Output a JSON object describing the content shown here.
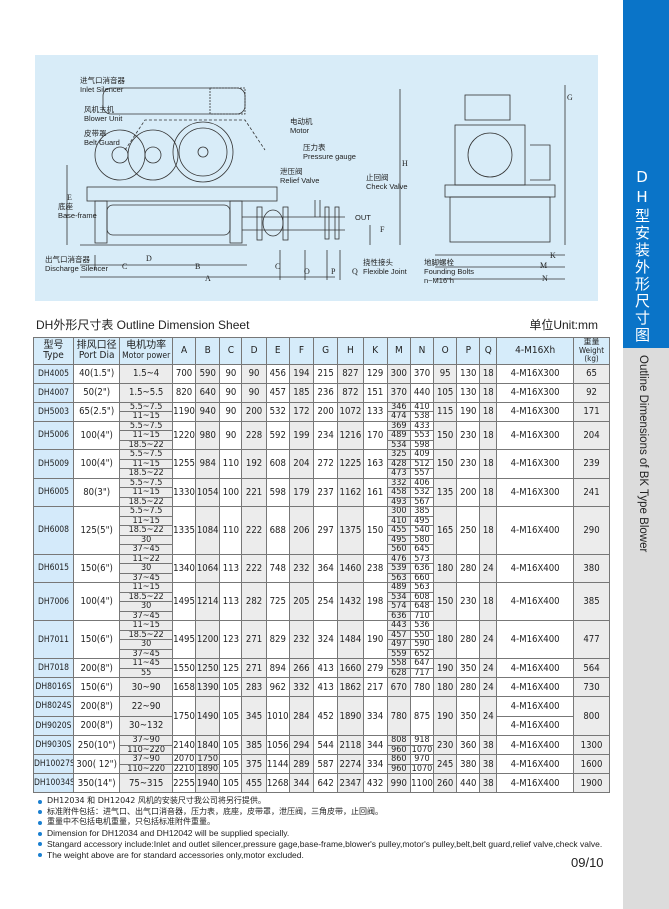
{
  "sidebar": {
    "title_cn": "DH型安装外形尺寸图",
    "title_en": "Outline Dimensions of BK Type Blower"
  },
  "diagram": {
    "labels": [
      {
        "cn": "进气口消音器",
        "en": "Inlet Silencer"
      },
      {
        "cn": "风机主机",
        "en": "Blower Unit"
      },
      {
        "cn": "皮带罩",
        "en": "Belt Guard"
      },
      {
        "cn": "电动机",
        "en": "Motor"
      },
      {
        "cn": "压力表",
        "en": "Pressure gauge"
      },
      {
        "cn": "泄压阀",
        "en": "Relief Valve"
      },
      {
        "cn": "止回阀",
        "en": "Check Valve"
      },
      {
        "cn": "底座",
        "en": "Base-frame"
      },
      {
        "cn": "出气口消音器",
        "en": "Discharge Silencer"
      },
      {
        "cn": "挠性接头",
        "en": "Flexible Joint"
      },
      {
        "cn": "地脚螺栓",
        "en": "Founding Bolts",
        "extra": "n~M16\"h"
      }
    ],
    "out_label": "OUT",
    "dims": {
      "A": "A",
      "B": "B",
      "C": "C",
      "D": "D",
      "E": "E",
      "F": "F",
      "G": "G",
      "H": "H",
      "K": "K",
      "M": "M",
      "N": "N",
      "O": "O",
      "P": "P",
      "Q": "Q"
    }
  },
  "sheet": {
    "title": "DH外形尺寸表 Outline Dimension Sheet",
    "unit": "单位Unit:mm"
  },
  "table": {
    "headers": [
      {
        "cn": "型号",
        "en": "Type"
      },
      {
        "cn": "排风口径",
        "en": "Port Dia"
      },
      {
        "cn": "电机功率",
        "en": "Motor power"
      },
      {
        "en": "A"
      },
      {
        "en": "B"
      },
      {
        "en": "C"
      },
      {
        "en": "D"
      },
      {
        "en": "E"
      },
      {
        "en": "F"
      },
      {
        "en": "G"
      },
      {
        "en": "H"
      },
      {
        "en": "K"
      },
      {
        "en": "M"
      },
      {
        "en": "N"
      },
      {
        "en": "O"
      },
      {
        "en": "P"
      },
      {
        "en": "Q"
      },
      {
        "en": "4-M16Xh"
      },
      {
        "cn": "重量",
        "en": "Weight",
        "unit": "(kg)"
      }
    ],
    "rows": [
      {
        "type": "DH4005",
        "port": "40(1.5\")",
        "motor": "1.5~4",
        "A": "700",
        "B": "590",
        "C": "90",
        "D": "90",
        "E": "456",
        "F": "194",
        "G": "215",
        "H": "827",
        "K": "129",
        "M": "300",
        "N": "370",
        "O": "95",
        "P": "130",
        "Q": "18",
        "bolt": "4-M16X300",
        "weight": "65"
      },
      {
        "type": "DH4007",
        "port": "50(2\")",
        "motor": "1.5~5.5",
        "A": "820",
        "B": "640",
        "C": "90",
        "D": "90",
        "E": "457",
        "F": "185",
        "G": "236",
        "H": "872",
        "K": "151",
        "M": "370",
        "N": "440",
        "O": "105",
        "P": "130",
        "Q": "18",
        "bolt": "4-M16X300",
        "weight": "92"
      },
      {
        "type": "DH5003",
        "port": "65(2.5\")",
        "motor": [
          "5.5~7.5",
          "11~15"
        ],
        "A": "1190",
        "B": "940",
        "C": "90",
        "D": "200",
        "E": "532",
        "F": "172",
        "G": "200",
        "H": "1072",
        "K": "133",
        "M": [
          "346",
          "474"
        ],
        "N": [
          "410",
          "538"
        ],
        "O": "115",
        "P": "190",
        "Q": "18",
        "bolt": "4-M16X300",
        "weight": "171"
      },
      {
        "type": "DH5006",
        "port": "100(4\")",
        "motor": [
          "5.5~7.5",
          "11~15",
          "18.5~22"
        ],
        "A": "1220",
        "B": "980",
        "C": "90",
        "D": "228",
        "E": "592",
        "F": "199",
        "G": "234",
        "H": "1216",
        "K": "170",
        "M": [
          "369",
          "489",
          "534"
        ],
        "N": [
          "433",
          "553",
          "598"
        ],
        "O": "150",
        "P": "230",
        "Q": "18",
        "bolt": "4-M16X300",
        "weight": "204"
      },
      {
        "type": "DH5009",
        "port": "100(4\")",
        "motor": [
          "5.5~7.5",
          "11~15",
          "18.5~22"
        ],
        "A": "1255",
        "B": "984",
        "C": "110",
        "D": "192",
        "E": "608",
        "F": "204",
        "G": "272",
        "H": "1225",
        "K": "163",
        "M": [
          "325",
          "428",
          "473"
        ],
        "N": [
          "409",
          "512",
          "557"
        ],
        "O": "150",
        "P": "230",
        "Q": "18",
        "bolt": "4-M16X300",
        "weight": "239"
      },
      {
        "type": "DH6005",
        "port": "80(3\")",
        "motor": [
          "5.5~7.5",
          "11~15",
          "18.5~22"
        ],
        "A": "1330",
        "B": "1054",
        "C": "100",
        "D": "221",
        "E": "598",
        "F": "179",
        "G": "237",
        "H": "1162",
        "K": "161",
        "M": [
          "332",
          "458",
          "493"
        ],
        "N": [
          "406",
          "532",
          "567"
        ],
        "O": "135",
        "P": "200",
        "Q": "18",
        "bolt": "4-M16X300",
        "weight": "241"
      },
      {
        "type": "DH6008",
        "port": "125(5\")",
        "motor": [
          "5.5~7.5",
          "11~15",
          "18.5~22",
          "30",
          "37~45"
        ],
        "A": "1335",
        "B": "1084",
        "C": "110",
        "D": "222",
        "E": "688",
        "F": "206",
        "G": "297",
        "H": "1375",
        "K": "150",
        "M": [
          "300",
          "410",
          "455",
          "495",
          "560"
        ],
        "N": [
          "385",
          "495",
          "540",
          "580",
          "645"
        ],
        "O": "165",
        "P": "250",
        "Q": "18",
        "bolt": "4-M16X400",
        "weight": "290"
      },
      {
        "type": "DH6015",
        "port": "150(6\")",
        "motor": [
          "11~22",
          "30",
          "37~45"
        ],
        "A": "1340",
        "B": "1064",
        "C": "113",
        "D": "222",
        "E": "748",
        "F": "232",
        "G": "364",
        "H": "1460",
        "K": "238",
        "M": [
          "476",
          "539",
          "563"
        ],
        "N": [
          "573",
          "636",
          "660"
        ],
        "O": "180",
        "P": "280",
        "Q": "24",
        "bolt": "4-M16X400",
        "weight": "380"
      },
      {
        "type": "DH7006",
        "port": "100(4\")",
        "motor": [
          "11~15",
          "18.5~22",
          "30",
          "37~45"
        ],
        "A": "1495",
        "B": "1214",
        "C": "113",
        "D": "282",
        "E": "725",
        "F": "205",
        "G": "254",
        "H": "1432",
        "K": "198",
        "M": [
          "489",
          "534",
          "574",
          "636"
        ],
        "N": [
          "563",
          "608",
          "648",
          "710"
        ],
        "O": "150",
        "P": "230",
        "Q": "18",
        "bolt": "4-M16X400",
        "weight": "385"
      },
      {
        "type": "DH7011",
        "port": "150(6\")",
        "motor": [
          "11~15",
          "18.5~22",
          "30",
          "37~45"
        ],
        "A": "1495",
        "B": "1200",
        "C": "123",
        "D": "271",
        "E": "829",
        "F": "232",
        "G": "324",
        "H": "1484",
        "K": "190",
        "M": [
          "443",
          "457",
          "497",
          "559"
        ],
        "N": [
          "536",
          "550",
          "590",
          "652"
        ],
        "O": "180",
        "P": "280",
        "Q": "24",
        "bolt": "4-M16X400",
        "weight": "477"
      },
      {
        "type": "DH7018",
        "port": "200(8\")",
        "motor": [
          "11~45",
          "55"
        ],
        "A": "1550",
        "B": "1250",
        "C": "125",
        "D": "271",
        "E": "894",
        "F": "266",
        "G": "413",
        "H": "1660",
        "K": "279",
        "M": [
          "558",
          "628"
        ],
        "N": [
          "647",
          "717"
        ],
        "O": "190",
        "P": "350",
        "Q": "24",
        "bolt": "4-M16X400",
        "weight": "564"
      },
      {
        "type": "DH8016S",
        "port": "150(6\")",
        "motor": "30~90",
        "A": "1658",
        "B": "1390",
        "C": "105",
        "D": "283",
        "E": "962",
        "F": "332",
        "G": "413",
        "H": "1862",
        "K": "217",
        "M": "670",
        "N": "780",
        "O": "180",
        "P": "280",
        "Q": "24",
        "bolt": "4-M16X400",
        "weight": "730"
      },
      {
        "type": [
          "DH8024S",
          "DH9020S"
        ],
        "port": [
          "200(8\")",
          "200(8\")"
        ],
        "motor": [
          "22~90",
          "30~132"
        ],
        "A": "1750",
        "B": "1490",
        "C": "105",
        "D": "345",
        "E": "1010",
        "F": "284",
        "G": "452",
        "H": "1890",
        "K": "334",
        "M": "780",
        "N": "875",
        "O": "190",
        "P": "350",
        "Q": "24",
        "bolt": [
          "4-M16X400",
          "4-M16X400"
        ],
        "weight": "800"
      },
      {
        "type": "DH9030S",
        "port": "250(10\")",
        "motor": [
          "37~90",
          "110~220"
        ],
        "A": "2140",
        "B": "1840",
        "C": "105",
        "D": "385",
        "E": "1056",
        "F": "294",
        "G": "544",
        "H": "2118",
        "K": "344",
        "M": [
          "808",
          "960"
        ],
        "N": [
          "918",
          "1070"
        ],
        "O": "230",
        "P": "360",
        "Q": "38",
        "bolt": "4-M16X400",
        "weight": "1300"
      },
      {
        "type": "DH10027S",
        "port": "300( 12\")",
        "motor": [
          "37~90",
          "110~220"
        ],
        "A": [
          "2070",
          "2210"
        ],
        "B": [
          "1750",
          "1890"
        ],
        "C": "105",
        "D": "375",
        "E": "1144",
        "F": "289",
        "G": "587",
        "H": "2274",
        "K": "334",
        "M": [
          "860",
          "960"
        ],
        "N": [
          "970",
          "1070"
        ],
        "O": "245",
        "P": "380",
        "Q": "38",
        "bolt": "4-M16X400",
        "weight": "1600"
      },
      {
        "type": "DH10034S",
        "port": "350(14\")",
        "motor": "75~315",
        "A": "2255",
        "B": "1940",
        "C": "105",
        "D": "455",
        "E": "1268",
        "F": "344",
        "G": "642",
        "H": "2347",
        "K": "432",
        "M": "990",
        "N": "1100",
        "O": "260",
        "P": "440",
        "Q": "38",
        "bolt": "4-M16X400",
        "weight": "1900"
      }
    ]
  },
  "notes": [
    "DH12034 和 DH12042 风机的安装尺寸我公司将另行提供。",
    "标准附件包括：进气口、出气口消音器，压力表，底座，皮带罩，泄压阀，三角皮带，止回阀。",
    "重量中不包括电机重量，只包括标准附件重量。",
    "Dimension for DH12034 and DH12042 will be supplied specially.",
    "Stangard accessory include:Inlet and outlet silencer,pressure gage,base-frame,blower's pulley,motor's pulley,belt,belt guard,relief valve,check valve.",
    "The weight above are for standard accessories only,motor excluded."
  ],
  "page_number": "09/10",
  "colors": {
    "sidebar": "#0a74c8",
    "diagram_bg": "#d8ecf8",
    "header_bg": "#d6ecfa",
    "bullet": "#1a7fd0"
  }
}
